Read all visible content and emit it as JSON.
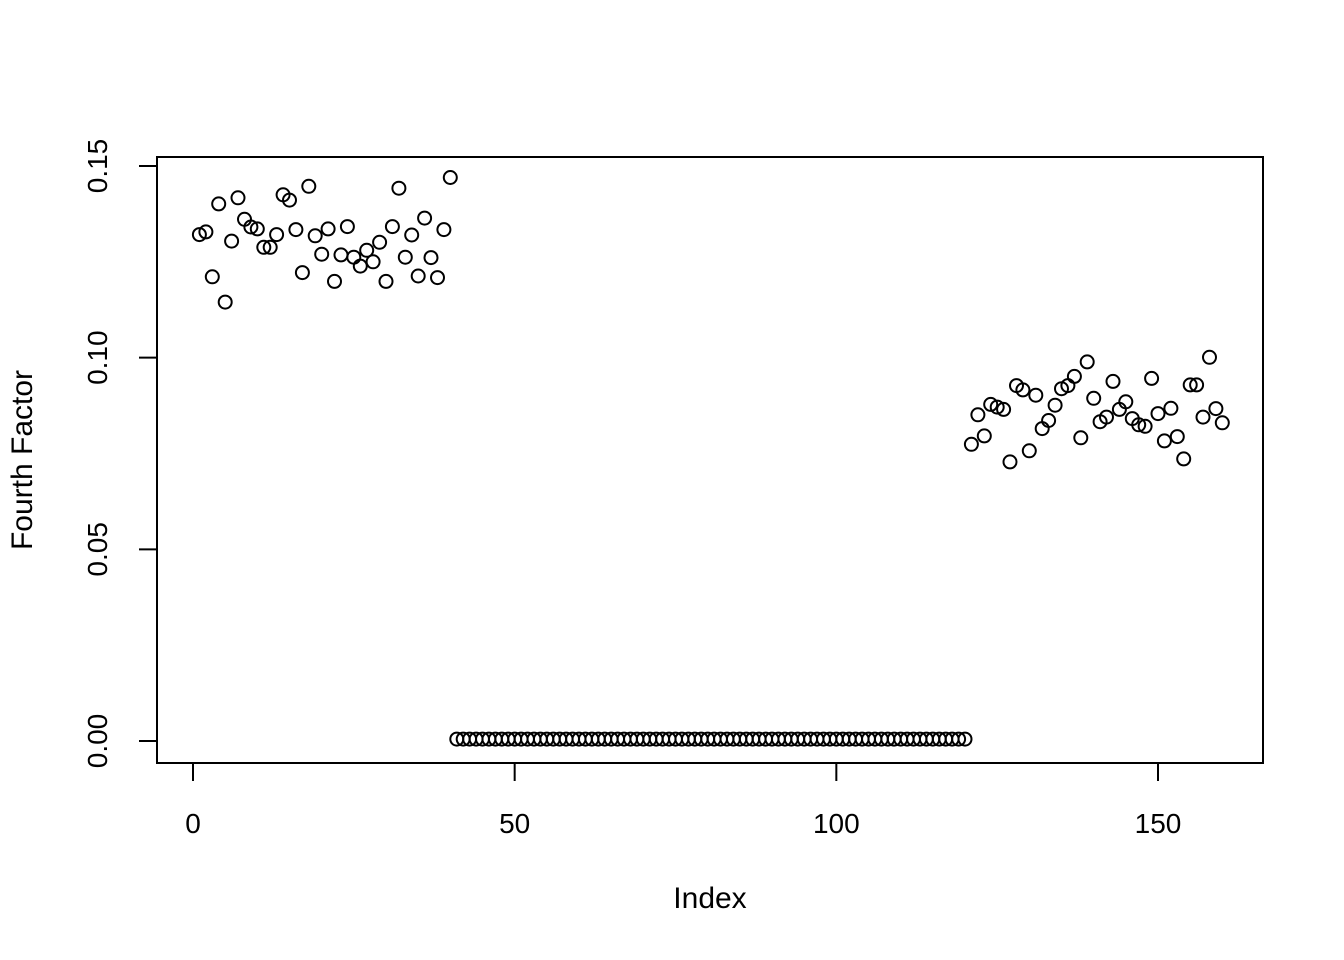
{
  "page": {
    "background": "#ffffff",
    "foreground": "#000000"
  },
  "chart_data": {
    "type": "scatter",
    "title": "",
    "xlabel": "Index",
    "ylabel": "Fourth Factor",
    "marker": {
      "shape": "open-circle",
      "color": "#000000"
    },
    "grid": false,
    "legend": "none",
    "x_ticks": {
      "values": [
        0,
        50,
        100,
        150
      ],
      "labels": [
        "0",
        "50",
        "100",
        "150"
      ]
    },
    "y_ticks": {
      "values": [
        0,
        0.05,
        0.1,
        0.15
      ],
      "labels": [
        "0.00",
        "0.05",
        "0.10",
        "0.15"
      ]
    },
    "xlim": [
      -5.6,
      166.4
    ],
    "ylim": [
      -0.0057,
      0.1524
    ],
    "x": {
      "start": 1,
      "end": 160,
      "step": 1
    },
    "y": [
      0.1321,
      0.1328,
      0.1211,
      0.1401,
      0.1145,
      0.1304,
      0.1417,
      0.1361,
      0.1341,
      0.1336,
      0.1288,
      0.1288,
      0.1321,
      0.1425,
      0.1411,
      0.1334,
      0.1222,
      0.1447,
      0.1318,
      0.127,
      0.1336,
      0.1199,
      0.1268,
      0.1342,
      0.1262,
      0.1239,
      0.128,
      0.125,
      0.1301,
      0.1199,
      0.1342,
      0.1442,
      0.1262,
      0.132,
      0.1213,
      0.1364,
      0.1261,
      0.1209,
      0.1334,
      0.147,
      0.0005,
      0.0005,
      0.0005,
      0.0005,
      0.0005,
      0.0005,
      0.0005,
      0.0005,
      0.0005,
      0.0005,
      0.0005,
      0.0005,
      0.0005,
      0.0005,
      0.0005,
      0.0005,
      0.0005,
      0.0005,
      0.0005,
      0.0005,
      0.0005,
      0.0005,
      0.0005,
      0.0005,
      0.0005,
      0.0005,
      0.0005,
      0.0005,
      0.0005,
      0.0005,
      0.0005,
      0.0005,
      0.0005,
      0.0005,
      0.0005,
      0.0005,
      0.0005,
      0.0005,
      0.0005,
      0.0005,
      0.0005,
      0.0005,
      0.0005,
      0.0005,
      0.0005,
      0.0005,
      0.0005,
      0.0005,
      0.0005,
      0.0005,
      0.0005,
      0.0005,
      0.0005,
      0.0005,
      0.0005,
      0.0005,
      0.0005,
      0.0005,
      0.0005,
      0.0005,
      0.0005,
      0.0005,
      0.0005,
      0.0005,
      0.0005,
      0.0005,
      0.0005,
      0.0005,
      0.0005,
      0.0005,
      0.0005,
      0.0005,
      0.0005,
      0.0005,
      0.0005,
      0.0005,
      0.0005,
      0.0005,
      0.0005,
      0.0005,
      0.0774,
      0.0851,
      0.0796,
      0.0878,
      0.0871,
      0.0865,
      0.0728,
      0.0927,
      0.0916,
      0.0757,
      0.0902,
      0.0815,
      0.0836,
      0.0876,
      0.0919,
      0.0927,
      0.0951,
      0.0791,
      0.0989,
      0.0894,
      0.0833,
      0.0845,
      0.0938,
      0.0865,
      0.0885,
      0.0841,
      0.0825,
      0.0821,
      0.0946,
      0.0854,
      0.0783,
      0.0868,
      0.0794,
      0.0736,
      0.0929,
      0.0929,
      0.0845,
      0.1001,
      0.0867,
      0.083
    ]
  }
}
